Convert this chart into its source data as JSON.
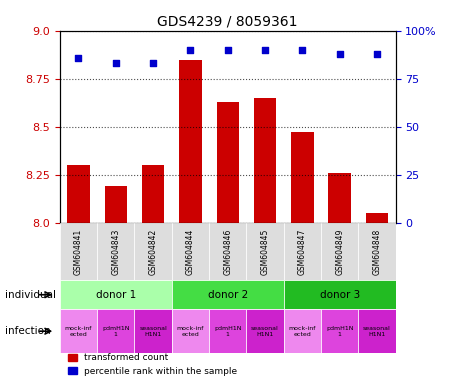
{
  "title": "GDS4239 / 8059361",
  "samples": [
    "GSM604841",
    "GSM604843",
    "GSM604842",
    "GSM604844",
    "GSM604846",
    "GSM604845",
    "GSM604847",
    "GSM604849",
    "GSM604848"
  ],
  "bar_values": [
    8.3,
    8.19,
    8.3,
    8.85,
    8.63,
    8.65,
    8.47,
    8.26,
    8.05
  ],
  "scatter_values": [
    86,
    83,
    83,
    90,
    90,
    90,
    90,
    88,
    88
  ],
  "bar_color": "#cc0000",
  "scatter_color": "#0000cc",
  "ylim_left": [
    8.0,
    9.0
  ],
  "ylim_right": [
    0,
    100
  ],
  "yticks_left": [
    8.0,
    8.25,
    8.5,
    8.75,
    9.0
  ],
  "yticks_right": [
    0,
    25,
    50,
    75,
    100
  ],
  "donors": [
    {
      "label": "donor 1",
      "start": 0,
      "end": 3,
      "color": "#aaffaa"
    },
    {
      "label": "donor 2",
      "start": 3,
      "end": 6,
      "color": "#44dd44"
    },
    {
      "label": "donor 3",
      "start": 6,
      "end": 9,
      "color": "#22bb22"
    }
  ],
  "infection_colors": [
    "#ee88ee",
    "#dd44dd",
    "#cc22cc",
    "#ee88ee",
    "#dd44dd",
    "#cc22cc",
    "#ee88ee",
    "#dd44dd",
    "#cc22cc"
  ],
  "infection_labels": [
    "mock-inf\nected",
    "pdmH1N\n1",
    "seasonal\nH1N1",
    "mock-inf\nected",
    "pdmH1N\n1",
    "seasonal\nH1N1",
    "mock-inf\nected",
    "pdmH1N\n1",
    "seasonal\nH1N1"
  ],
  "donor_colors": [
    "#aaffaa",
    "#44dd44",
    "#22bb22"
  ],
  "donor_labels": [
    "donor 1",
    "donor 2",
    "donor 3"
  ],
  "legend_red": "transformed count",
  "legend_blue": "percentile rank within the sample",
  "individual_label": "individual",
  "infection_label": "infection"
}
